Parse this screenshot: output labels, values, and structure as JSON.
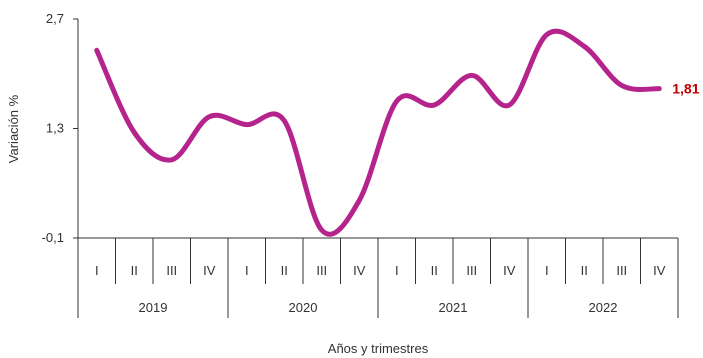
{
  "chart_data": {
    "type": "line",
    "title": "",
    "ylabel": "Variación %",
    "xlabel": "Años y trimestres",
    "ylim": [
      -0.1,
      2.7
    ],
    "yticks": [
      "2,7",
      "1,3",
      "-0,1"
    ],
    "ytick_values": [
      2.7,
      1.3,
      -0.1
    ],
    "grid": false,
    "legend": "none",
    "line_color": "#b5238c",
    "end_label_color": "#c00000",
    "end_label": "1,81",
    "years": [
      "2019",
      "2020",
      "2021",
      "2022"
    ],
    "quarters": [
      "I",
      "II",
      "III",
      "IV"
    ],
    "categories": [
      "2019-I",
      "2019-II",
      "2019-III",
      "2019-IV",
      "2020-I",
      "2020-II",
      "2020-III",
      "2020-IV",
      "2021-I",
      "2021-II",
      "2021-III",
      "2021-IV",
      "2022-I",
      "2022-II",
      "2022-III",
      "2022-IV"
    ],
    "series": [
      {
        "values": [
          2.3,
          1.25,
          0.9,
          1.45,
          1.35,
          1.4,
          0.0,
          0.38,
          1.65,
          1.6,
          1.98,
          1.6,
          2.5,
          2.35,
          1.85,
          1.81
        ]
      }
    ]
  }
}
